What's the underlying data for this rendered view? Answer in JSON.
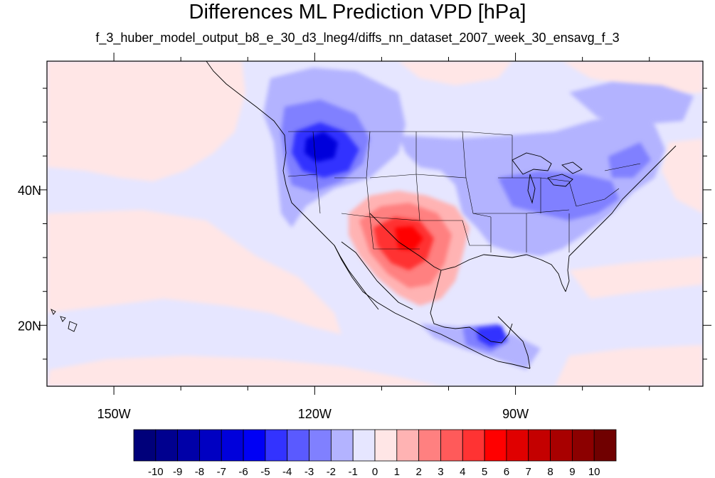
{
  "title": "Differences ML Prediction VPD [hPa]",
  "subtitle": "f_3_huber_model_output_b8_e_30_d3_lneg4/diffs_nn_dataset_2007_week_30_ensavg_f_3",
  "map": {
    "lon_range": [
      -160,
      -62
    ],
    "lat_range": [
      11,
      59
    ],
    "lon_ticks": [
      {
        "value": -150,
        "label": "150W"
      },
      {
        "value": -120,
        "label": "120W"
      },
      {
        "value": -90,
        "label": "90W"
      }
    ],
    "lat_ticks": [
      {
        "value": 40,
        "label": "40N"
      },
      {
        "value": 20,
        "label": "20N"
      }
    ]
  },
  "colorbar": {
    "labels": [
      "-10",
      "-9",
      "-8",
      "-7",
      "-6",
      "-5",
      "-4",
      "-3",
      "-2",
      "-1",
      "0",
      "1",
      "2",
      "3",
      "4",
      "5",
      "6",
      "7",
      "8",
      "9",
      "10"
    ],
    "colors": [
      "#00007a",
      "#00008f",
      "#0000a8",
      "#0000c2",
      "#0000db",
      "#0000f5",
      "#3333ff",
      "#5a5aff",
      "#8080ff",
      "#b3b3ff",
      "#e6e6ff",
      "#ffe6e6",
      "#ffb3b3",
      "#ff8080",
      "#ff5a5a",
      "#ff3333",
      "#ff0000",
      "#e00000",
      "#c40000",
      "#a80000",
      "#8c0000",
      "#700000"
    ]
  }
}
